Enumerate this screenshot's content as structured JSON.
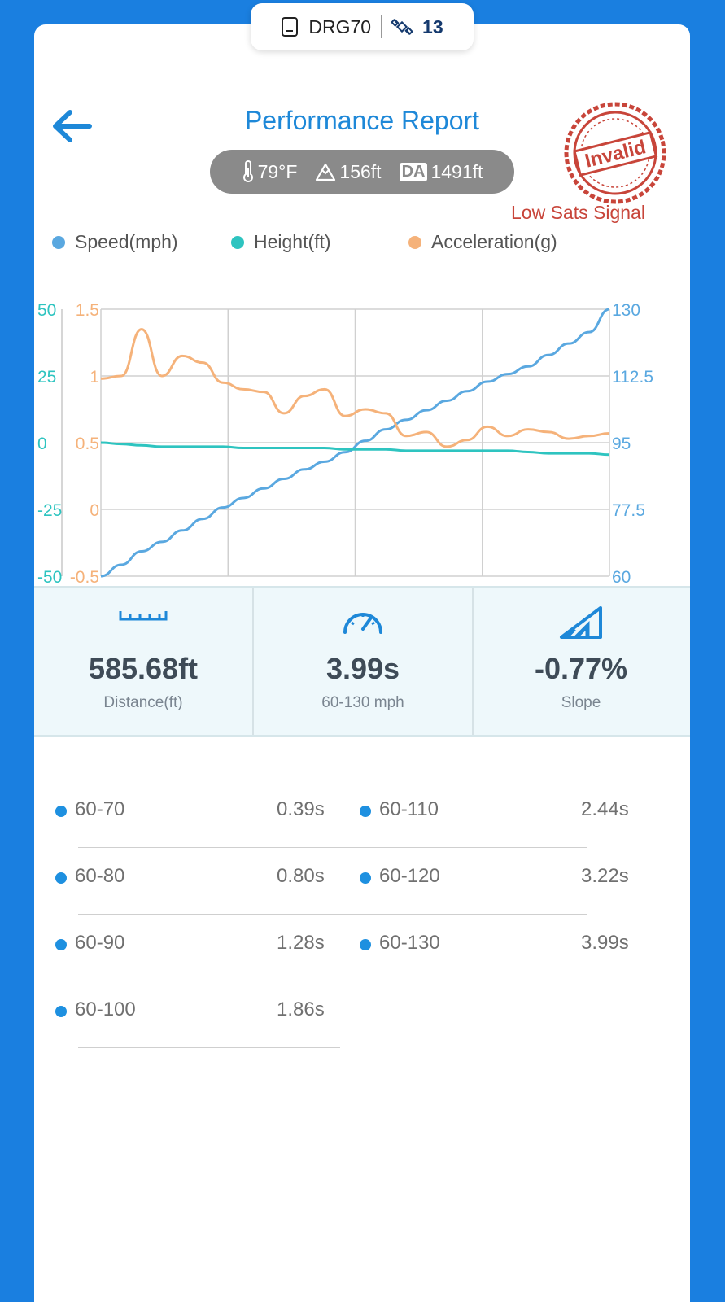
{
  "device": {
    "name": "DRG70",
    "sat_count": "13"
  },
  "header": {
    "title": "Performance Report"
  },
  "conditions": {
    "temperature": "79°F",
    "altitude": "156ft",
    "da_label": "DA",
    "density_altitude": "1491ft"
  },
  "status": {
    "stamp": "Invalid",
    "warning": "Low Sats Signal"
  },
  "legend": [
    {
      "label": "Speed(mph)",
      "color": "#5aa8e0"
    },
    {
      "label": "Height(ft)",
      "color": "#2ec4c0"
    },
    {
      "label": "Acceleration(g)",
      "color": "#f5b27a"
    }
  ],
  "chart_data": {
    "type": "line",
    "axes": {
      "height_ticks": [
        "50",
        "25",
        "0",
        "-25",
        "-50"
      ],
      "accel_ticks": [
        "1.5",
        "1",
        "0.5",
        "0",
        "-0.5"
      ],
      "speed_ticks": [
        "130",
        "112.5",
        "95",
        "77.5",
        "60"
      ],
      "height_range": [
        -50,
        50
      ],
      "accel_range": [
        -0.5,
        1.5
      ],
      "speed_range": [
        60,
        130
      ],
      "grid": true
    },
    "x": [
      0,
      0.04,
      0.08,
      0.12,
      0.16,
      0.2,
      0.24,
      0.28,
      0.32,
      0.36,
      0.4,
      0.44,
      0.48,
      0.52,
      0.56,
      0.6,
      0.64,
      0.68,
      0.72,
      0.76,
      0.8,
      0.84,
      0.88,
      0.92,
      0.96,
      1.0
    ],
    "series": [
      {
        "name": "Speed(mph)",
        "color": "#5aa8e0",
        "values": [
          60,
          63,
          66.5,
          69,
          72,
          75,
          78,
          80.5,
          83,
          85.5,
          88,
          90,
          92.5,
          95.5,
          98.5,
          101,
          103.5,
          106,
          108.5,
          111,
          113,
          115,
          118,
          121,
          124,
          130
        ]
      },
      {
        "name": "Height(ft)",
        "color": "#2ec4c0",
        "values": [
          0,
          -0.5,
          -1,
          -1.5,
          -1.5,
          -1.5,
          -1.5,
          -2,
          -2,
          -2,
          -2,
          -2,
          -2.5,
          -2.5,
          -2.5,
          -3,
          -3,
          -3,
          -3,
          -3,
          -3,
          -3.5,
          -4,
          -4,
          -4,
          -4.5
        ]
      },
      {
        "name": "Acceleration(g)",
        "color": "#f5b27a",
        "values": [
          0.98,
          1.0,
          1.35,
          1.0,
          1.15,
          1.1,
          0.95,
          0.9,
          0.88,
          0.72,
          0.85,
          0.9,
          0.7,
          0.75,
          0.72,
          0.55,
          0.58,
          0.47,
          0.52,
          0.62,
          0.55,
          0.6,
          0.58,
          0.53,
          0.55,
          0.57
        ]
      }
    ]
  },
  "stats": [
    {
      "value": "585.68ft",
      "label": "Distance(ft)"
    },
    {
      "value": "3.99s",
      "label": "60-130 mph"
    },
    {
      "value": "-0.77%",
      "label": "Slope"
    }
  ],
  "splits_left": [
    {
      "range": "60-70",
      "time": "0.39s"
    },
    {
      "range": "60-80",
      "time": "0.80s"
    },
    {
      "range": "60-90",
      "time": "1.28s"
    },
    {
      "range": "60-100",
      "time": "1.86s"
    }
  ],
  "splits_right": [
    {
      "range": "60-110",
      "time": "2.44s"
    },
    {
      "range": "60-120",
      "time": "3.22s"
    },
    {
      "range": "60-130",
      "time": "3.99s"
    }
  ]
}
